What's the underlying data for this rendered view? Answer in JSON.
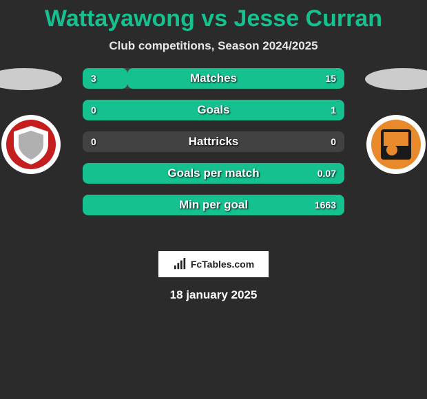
{
  "title_text": "Wattayawong vs Jesse Curran",
  "title_color": "#14c18f",
  "subtitle": "Club competitions, Season 2024/2025",
  "date": "18 january 2025",
  "brand_text": "FcTables.com",
  "stats_base_color": "#424242",
  "stats_fill_color": "#14c18f",
  "badge_left": {
    "primary": "#c51e1e",
    "secondary": "#ffffff"
  },
  "badge_right": {
    "primary": "#e88a2c",
    "secondary": "#1a1a1a"
  },
  "rows": [
    {
      "label": "Matches",
      "left": "3",
      "right": "15",
      "lpct": 17,
      "rpct": 83
    },
    {
      "label": "Goals",
      "left": "0",
      "right": "1",
      "lpct": 0,
      "rpct": 100
    },
    {
      "label": "Hattricks",
      "left": "0",
      "right": "0",
      "lpct": 0,
      "rpct": 0
    },
    {
      "label": "Goals per match",
      "left": "",
      "right": "0.07",
      "lpct": 0,
      "rpct": 100
    },
    {
      "label": "Min per goal",
      "left": "",
      "right": "1663",
      "lpct": 0,
      "rpct": 100
    }
  ]
}
